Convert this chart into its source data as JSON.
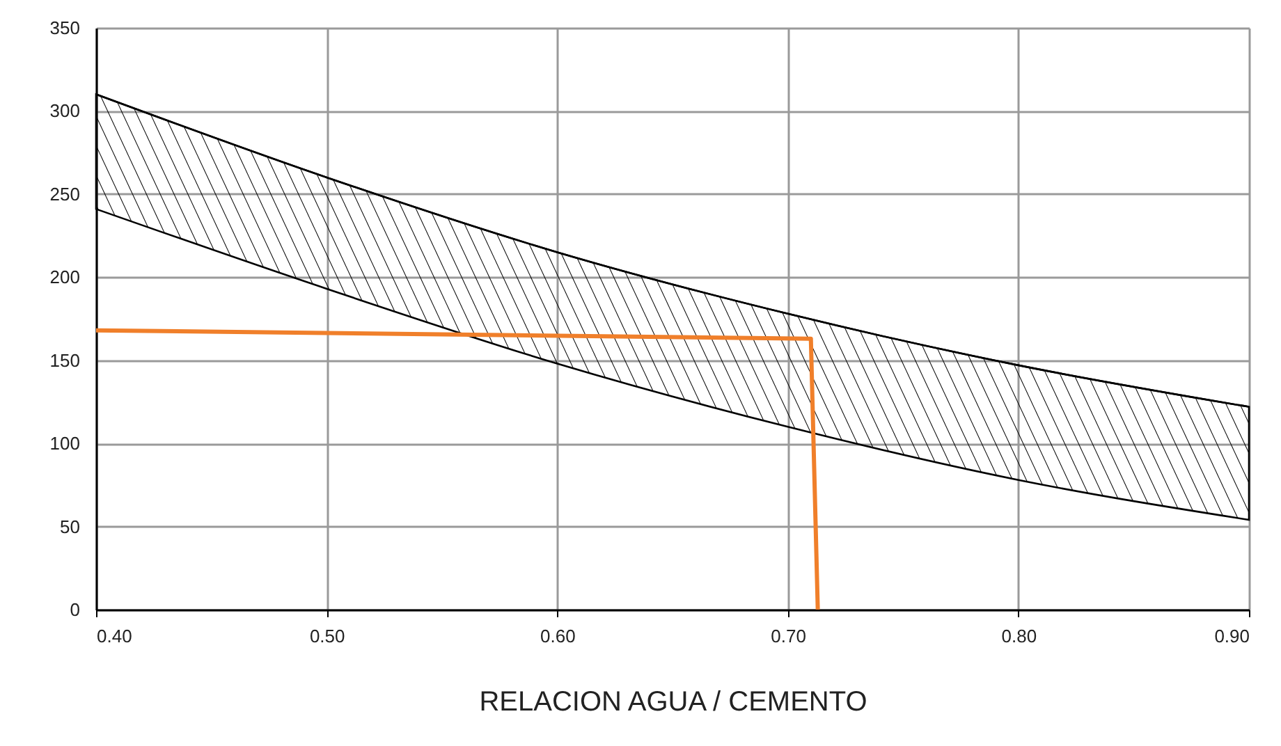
{
  "chart_data": {
    "type": "line",
    "xlabel": "RELACION AGUA / CEMENTO",
    "xlim": [
      0.4,
      0.9
    ],
    "ylim": [
      0,
      350
    ],
    "xticks": [
      {
        "value": 0.4,
        "label": "0.40"
      },
      {
        "value": 0.5,
        "label": "0.50"
      },
      {
        "value": 0.6,
        "label": "0.60"
      },
      {
        "value": 0.7,
        "label": "0.70"
      },
      {
        "value": 0.8,
        "label": "0.80"
      },
      {
        "value": 0.9,
        "label": "0.90"
      }
    ],
    "yticks": [
      0,
      50,
      100,
      150,
      200,
      250,
      300,
      350
    ],
    "grid": true,
    "series": [
      {
        "color": "#000000",
        "x": [
          0.4,
          0.5,
          0.6,
          0.7,
          0.8,
          0.9
        ],
        "values": [
          310,
          260,
          215,
          178,
          147,
          122
        ],
        "lower": [
          241,
          193,
          148,
          110,
          78,
          54
        ],
        "upper": [
          310,
          260,
          215,
          178,
          147,
          122
        ]
      },
      {
        "type": "line",
        "color": "#f07f2a",
        "x": [
          0.4,
          0.71,
          0.713
        ],
        "values": [
          168,
          163,
          0
        ]
      }
    ]
  }
}
